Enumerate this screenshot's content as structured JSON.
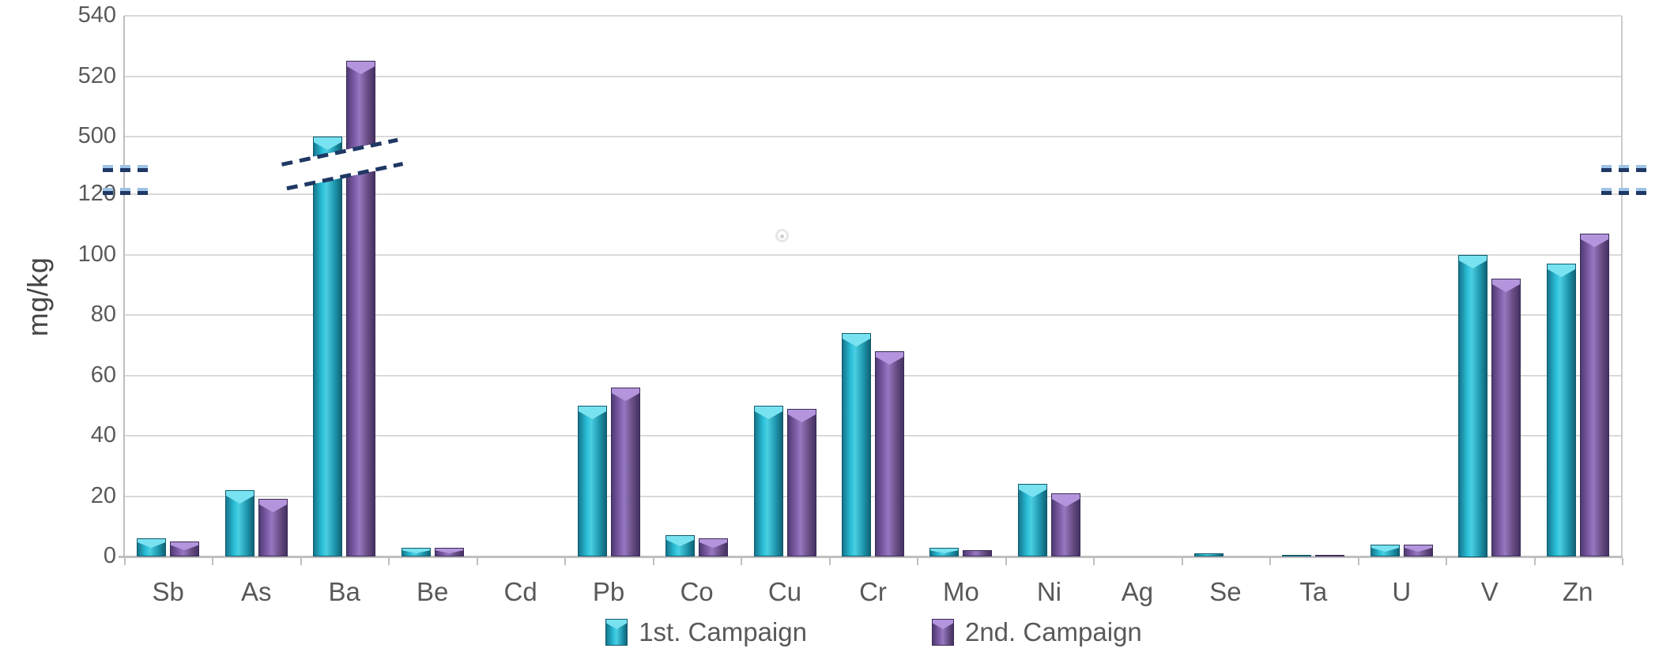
{
  "chart_data": {
    "type": "bar",
    "ylabel": "mg/kg",
    "categories": [
      "Sb",
      "As",
      "Ba",
      "Be",
      "Cd",
      "Pb",
      "Co",
      "Cu",
      "Cr",
      "Mo",
      "Ni",
      "Ag",
      "Se",
      "Ta",
      "U",
      "V",
      "Zn"
    ],
    "series": [
      {
        "name": "1st. Campaign",
        "color": "#2FBBD3",
        "values": [
          6,
          22,
          500,
          3,
          0,
          50,
          7,
          50,
          74,
          3,
          24,
          0,
          1,
          0.5,
          4,
          100,
          97
        ]
      },
      {
        "name": "2nd. Campaign",
        "color": "#8260AC",
        "values": [
          5,
          19,
          525,
          3,
          0,
          56,
          6,
          49,
          68,
          2,
          21,
          0,
          0,
          0.5,
          4,
          92,
          107
        ]
      }
    ],
    "y_axis": {
      "unit": "mg/kg",
      "lower_ticks": [
        0,
        20,
        40,
        60,
        80,
        100,
        120
      ],
      "upper_ticks": [
        500,
        520,
        540
      ],
      "axis_break": {
        "from": 120,
        "to": 500
      },
      "grid": true
    },
    "legend_position": "bottom",
    "legend_labels": [
      "1st. Campaign",
      "2nd. Campaign"
    ]
  },
  "style": {
    "series": [
      {
        "body": [
          "#16758C",
          "#2ABFD8",
          "#4ACFE2",
          "#1C91A8",
          "#116275"
        ],
        "cap": "#79E2F0",
        "border": "#0E5A6C"
      },
      {
        "body": [
          "#4F3B72",
          "#8260AC",
          "#9678C0",
          "#64497F",
          "#453263"
        ],
        "cap": "#B495DD",
        "border": "#3A2A55"
      }
    ],
    "grid_color": "#D9D9D9",
    "axis_color": "#BFBFBF",
    "tick_label_color": "#595959",
    "break_dash_dark": "#1F3864",
    "break_dash_light": "#9DC3E6"
  }
}
